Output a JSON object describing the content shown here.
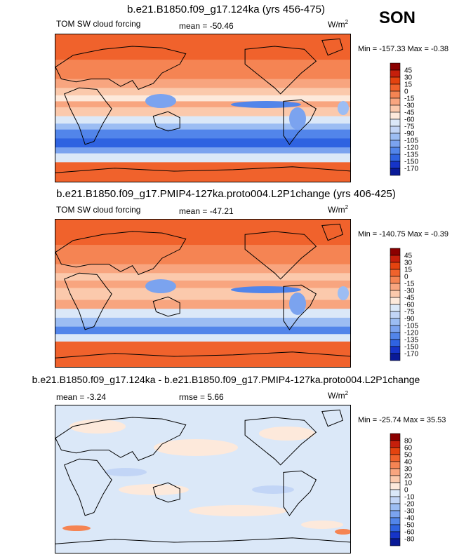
{
  "season": "SON",
  "panels": [
    {
      "title": "b.e21.B1850.f09_g17.124ka (yrs 456-475)",
      "left_label": "TOM SW cloud forcing",
      "mid_label": "mean = -50.46",
      "units": "W/m",
      "units_sup": "2",
      "minmax": "Min = -157.33 Max = -0.38",
      "style": "abs",
      "levels": [
        "45",
        "30",
        "15",
        "0",
        "-15",
        "-30",
        "-45",
        "-60",
        "-75",
        "-90",
        "-105",
        "-120",
        "-135",
        "-150",
        "-170"
      ],
      "colors": [
        "#8b0000",
        "#c61f0b",
        "#e4430f",
        "#f0622c",
        "#f58453",
        "#f8a57f",
        "#fbc9ac",
        "#fde9db",
        "#dbe8f8",
        "#c2d5f6",
        "#9cbdf3",
        "#7ba3ef",
        "#5285ea",
        "#2f63e1",
        "#1634c8",
        "#0a1a98"
      ]
    },
    {
      "title": "b.e21.B1850.f09_g17.PMIP4-127ka.proto004.L2P1change (yrs 406-425)",
      "left_label": "TOM SW cloud forcing",
      "mid_label": "mean = -47.21",
      "units": "W/m",
      "units_sup": "2",
      "minmax": "Min = -140.75 Max = -0.39",
      "style": "abs",
      "levels": [
        "45",
        "30",
        "15",
        "0",
        "-15",
        "-30",
        "-45",
        "-60",
        "-75",
        "-90",
        "-105",
        "-120",
        "-135",
        "-150",
        "-170"
      ],
      "colors": [
        "#8b0000",
        "#c61f0b",
        "#e4430f",
        "#f0622c",
        "#f58453",
        "#f8a57f",
        "#fbc9ac",
        "#fde9db",
        "#dbe8f8",
        "#c2d5f6",
        "#9cbdf3",
        "#7ba3ef",
        "#5285ea",
        "#2f63e1",
        "#1634c8",
        "#0a1a98"
      ]
    },
    {
      "title": "b.e21.B1850.f09_g17.124ka - b.e21.B1850.f09_g17.PMIP4-127ka.proto004.L2P1change",
      "left_label": "mean =  -3.24",
      "mid_label": "rmse =   5.66",
      "units": "W/m",
      "units_sup": "2",
      "minmax": "Min = -25.74 Max = 35.53",
      "style": "diff",
      "levels": [
        "80",
        "60",
        "50",
        "40",
        "30",
        "20",
        "10",
        "0",
        "-10",
        "-20",
        "-30",
        "-40",
        "-50",
        "-60",
        "-80"
      ],
      "colors": [
        "#8b0000",
        "#c61f0b",
        "#e4430f",
        "#f0622c",
        "#f58453",
        "#f8a57f",
        "#fbc9ac",
        "#fde9db",
        "#dbe8f8",
        "#c2d5f6",
        "#9cbdf3",
        "#7ba3ef",
        "#5285ea",
        "#2f63e1",
        "#1634c8",
        "#0a1a98"
      ]
    }
  ]
}
